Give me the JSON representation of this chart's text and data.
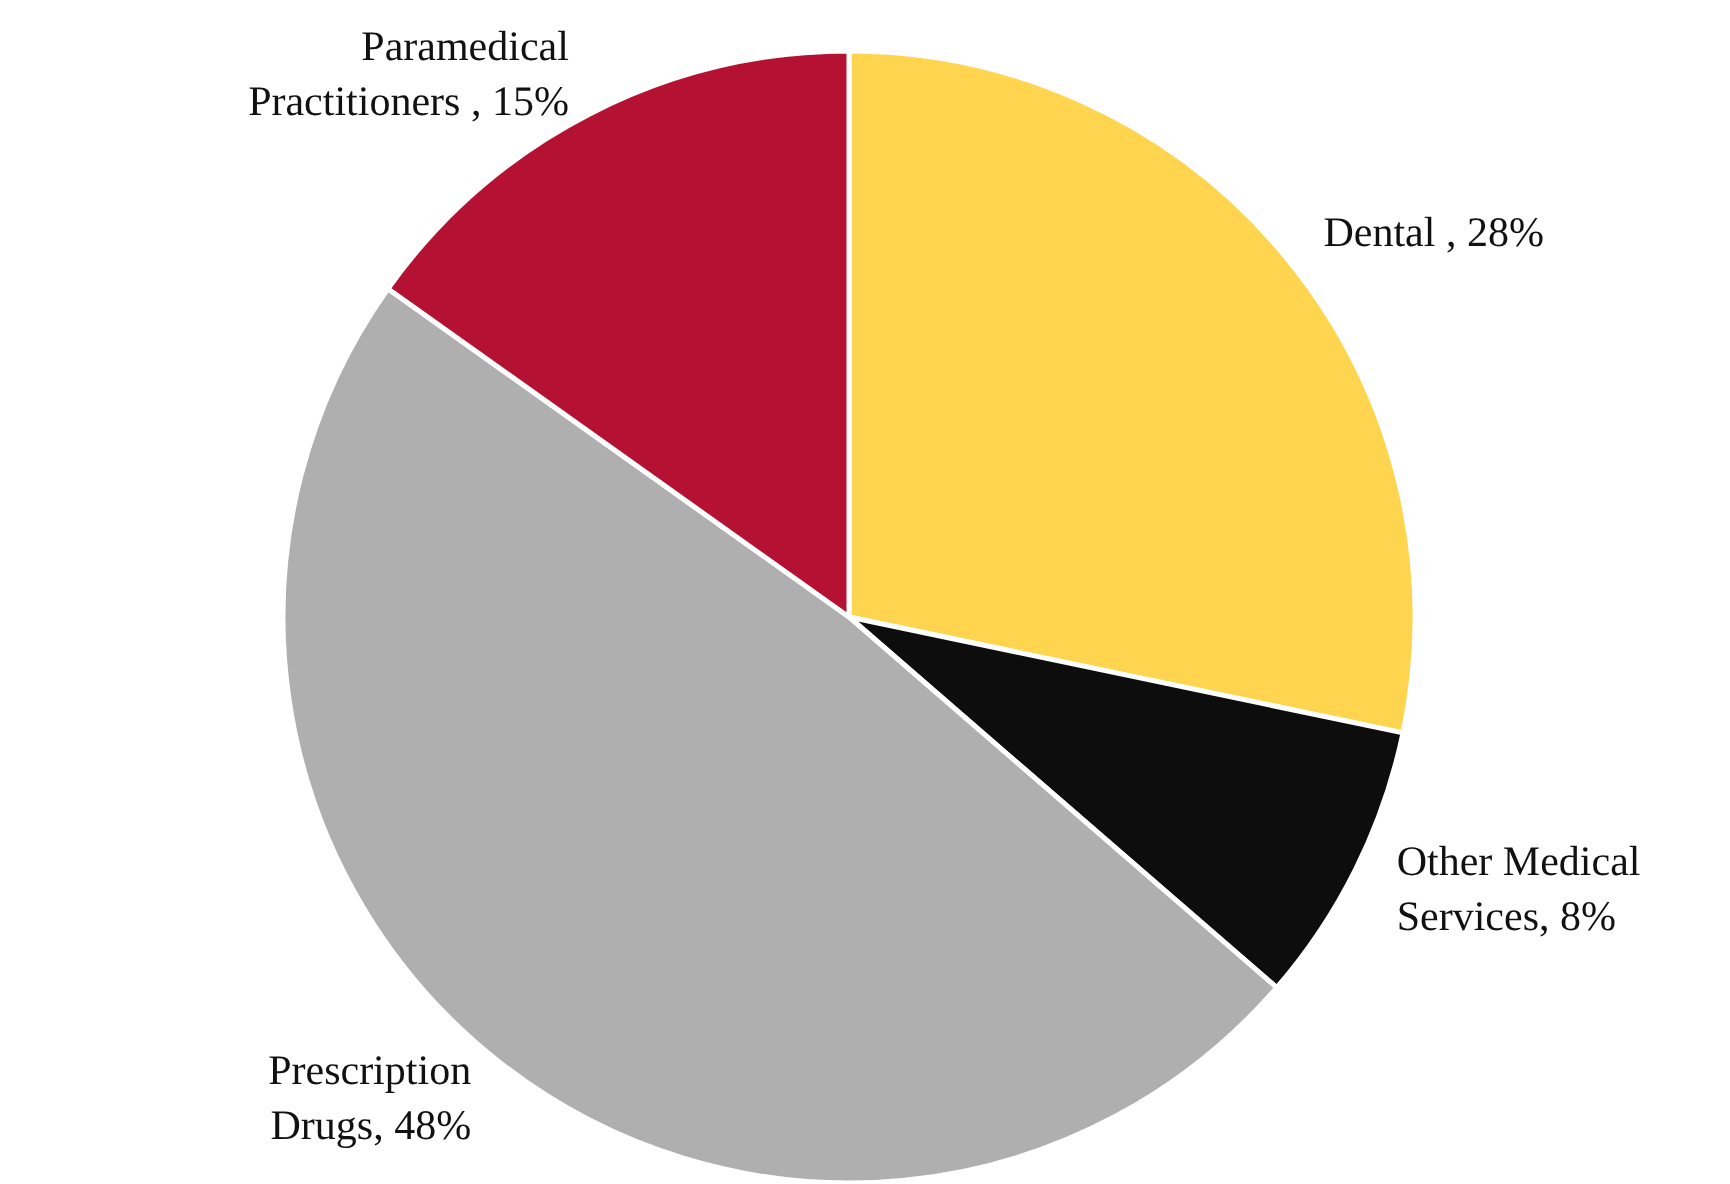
{
  "chart_data": {
    "type": "pie",
    "categories": [
      "Dental ",
      "Other Medical Services",
      "Prescription Drugs",
      "Paramedical Practitioners "
    ],
    "values": [
      28,
      8,
      48,
      15
    ],
    "value_labels": [
      "28%",
      "8%",
      "48%",
      "15%"
    ],
    "colors": [
      "#ffd550",
      "#0d0d0d",
      "#afafaf",
      "#b51233"
    ]
  }
}
